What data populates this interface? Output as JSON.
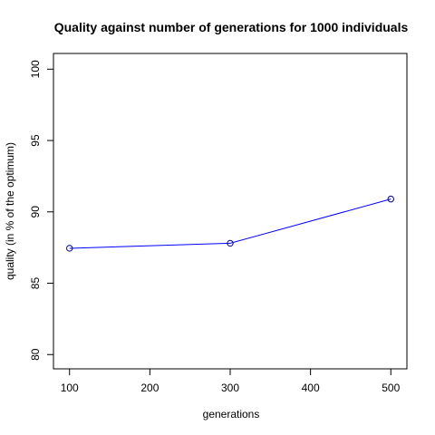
{
  "chart_data": {
    "type": "line",
    "title": "Quality against number of generations for 1000 individuals",
    "xlabel": "generations",
    "ylabel": "quality (in % of the optimum)",
    "x": [
      100,
      300,
      500
    ],
    "series": [
      {
        "values": [
          87.45,
          87.8,
          90.9
        ],
        "color": "#0000ff",
        "marker": "open-circle"
      }
    ],
    "xlim": [
      80,
      520
    ],
    "ylim": [
      79,
      101.1
    ],
    "xticks": [
      100,
      200,
      300,
      400,
      500
    ],
    "yticks": [
      80,
      85,
      90,
      95,
      100
    ],
    "grid": false,
    "legend": "none",
    "point_color": "#000080"
  }
}
